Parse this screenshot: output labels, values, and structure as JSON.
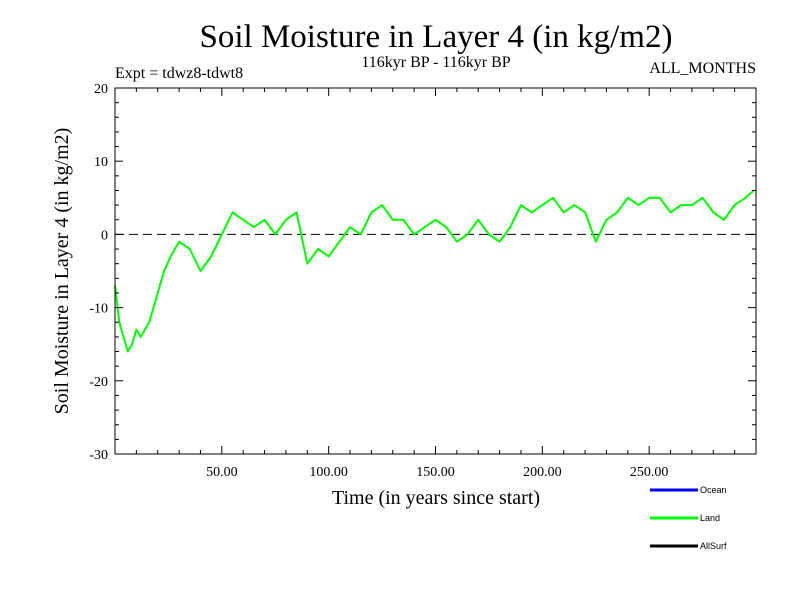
{
  "chart_data": {
    "type": "line",
    "title": "Soil Moisture in Layer 4 (in kg/m2)",
    "subtitle": "116kyr BP - 116kyr BP",
    "left_annotation": "Expt = tdwz8-tdwt8",
    "right_annotation": "ALL_MONTHS",
    "xlabel": "Time (in years since start)",
    "ylabel": "Soil Moisture in Layer 4 (in kg/m2)",
    "xlim": [
      0,
      300
    ],
    "ylim": [
      -30,
      20
    ],
    "x_ticks": [
      50,
      100,
      150,
      200,
      250
    ],
    "x_tick_labels": [
      "50.00",
      "100.00",
      "150.00",
      "200.00",
      "250.00"
    ],
    "y_ticks": [
      -30,
      -20,
      -10,
      0,
      10,
      20
    ],
    "y_tick_labels": [
      "-30",
      "-20",
      "-10",
      "0",
      "10",
      "20"
    ],
    "reference_line": 0,
    "grid": false,
    "legend_position": "bottom-right",
    "series": [
      {
        "name": "Ocean",
        "color": "#0000ff",
        "x": [],
        "y": []
      },
      {
        "name": "Land",
        "color": "#00ff00",
        "x": [
          0,
          2,
          4,
          6,
          8,
          10,
          12,
          14,
          16,
          18,
          20,
          23,
          26,
          30,
          35,
          40,
          45,
          50,
          55,
          60,
          65,
          70,
          75,
          80,
          85,
          90,
          95,
          100,
          105,
          110,
          115,
          120,
          125,
          130,
          135,
          140,
          145,
          150,
          155,
          160,
          165,
          170,
          175,
          180,
          185,
          190,
          195,
          200,
          205,
          210,
          215,
          220,
          225,
          230,
          235,
          240,
          245,
          250,
          255,
          260,
          265,
          270,
          275,
          280,
          285,
          290,
          295,
          299
        ],
        "y": [
          -7,
          -12,
          -14,
          -16,
          -15,
          -13,
          -14,
          -13,
          -12,
          -10,
          -8,
          -5,
          -3,
          -1,
          -2,
          -5,
          -3,
          0,
          3,
          2,
          1,
          2,
          0,
          2,
          3,
          -4,
          -2,
          -3,
          -1,
          1,
          0,
          3,
          4,
          2,
          2,
          0,
          1,
          2,
          1,
          -1,
          0,
          2,
          0,
          -1,
          1,
          4,
          3,
          4,
          5,
          3,
          4,
          3,
          -1,
          2,
          3,
          5,
          4,
          5,
          5,
          3,
          4,
          4,
          5,
          3,
          2,
          4,
          5,
          6
        ]
      },
      {
        "name": "AllSurf",
        "color": "#000000",
        "x": [],
        "y": []
      }
    ]
  }
}
